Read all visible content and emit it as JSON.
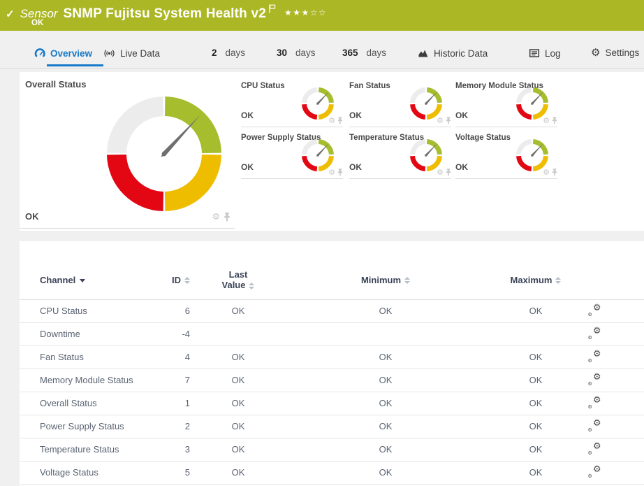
{
  "header": {
    "type_label": "Sensor",
    "title": "SNMP Fujitsu System Health v2",
    "status": "OK",
    "stars_filled": 3,
    "stars_total": 5
  },
  "tabs": {
    "overview": {
      "label": "Overview"
    },
    "live_data": {
      "label": "Live Data"
    },
    "days2": {
      "num": "2",
      "unit": "days"
    },
    "days30": {
      "num": "30",
      "unit": "days"
    },
    "days365": {
      "num": "365",
      "unit": "days"
    },
    "historic": {
      "label": "Historic Data"
    },
    "log": {
      "label": "Log"
    },
    "settings": {
      "label": "Settings"
    }
  },
  "overview": {
    "overall": {
      "title": "Overall Status",
      "value": "OK"
    },
    "small_gauges": [
      {
        "title": "CPU Status",
        "value": "OK"
      },
      {
        "title": "Fan Status",
        "value": "OK"
      },
      {
        "title": "Memory Module Status",
        "value": "OK"
      },
      {
        "title": "Power Supply Status",
        "value": "OK"
      },
      {
        "title": "Temperature Status",
        "value": "OK"
      },
      {
        "title": "Voltage Status",
        "value": "OK"
      }
    ],
    "needle_deg": 43
  },
  "icons": {
    "gear": "⚙",
    "star_filled": "★",
    "star_empty": "☆"
  },
  "colors": {
    "header_green": "#abb724",
    "gauge_green": "#a6bd2e",
    "gauge_yellow": "#efbd00",
    "gauge_red": "#e30613",
    "gauge_gray": "#ececec",
    "needle": "#6f6f6f",
    "accent_blue": "#1779c9"
  },
  "table": {
    "headers": {
      "channel": "Channel",
      "id": "ID",
      "last_line1": "Last",
      "last_line2": "Value",
      "min": "Minimum",
      "max": "Maximum"
    },
    "rows": [
      {
        "channel": "CPU Status",
        "id": "6",
        "last": "OK",
        "min": "OK",
        "max": "OK"
      },
      {
        "channel": "Downtime",
        "id": "-4",
        "last": "",
        "min": "",
        "max": ""
      },
      {
        "channel": "Fan Status",
        "id": "4",
        "last": "OK",
        "min": "OK",
        "max": "OK"
      },
      {
        "channel": "Memory Module Status",
        "id": "7",
        "last": "OK",
        "min": "OK",
        "max": "OK"
      },
      {
        "channel": "Overall Status",
        "id": "1",
        "last": "OK",
        "min": "OK",
        "max": "OK"
      },
      {
        "channel": "Power Supply Status",
        "id": "2",
        "last": "OK",
        "min": "OK",
        "max": "OK"
      },
      {
        "channel": "Temperature Status",
        "id": "3",
        "last": "OK",
        "min": "OK",
        "max": "OK"
      },
      {
        "channel": "Voltage Status",
        "id": "5",
        "last": "OK",
        "min": "OK",
        "max": "OK"
      }
    ]
  }
}
